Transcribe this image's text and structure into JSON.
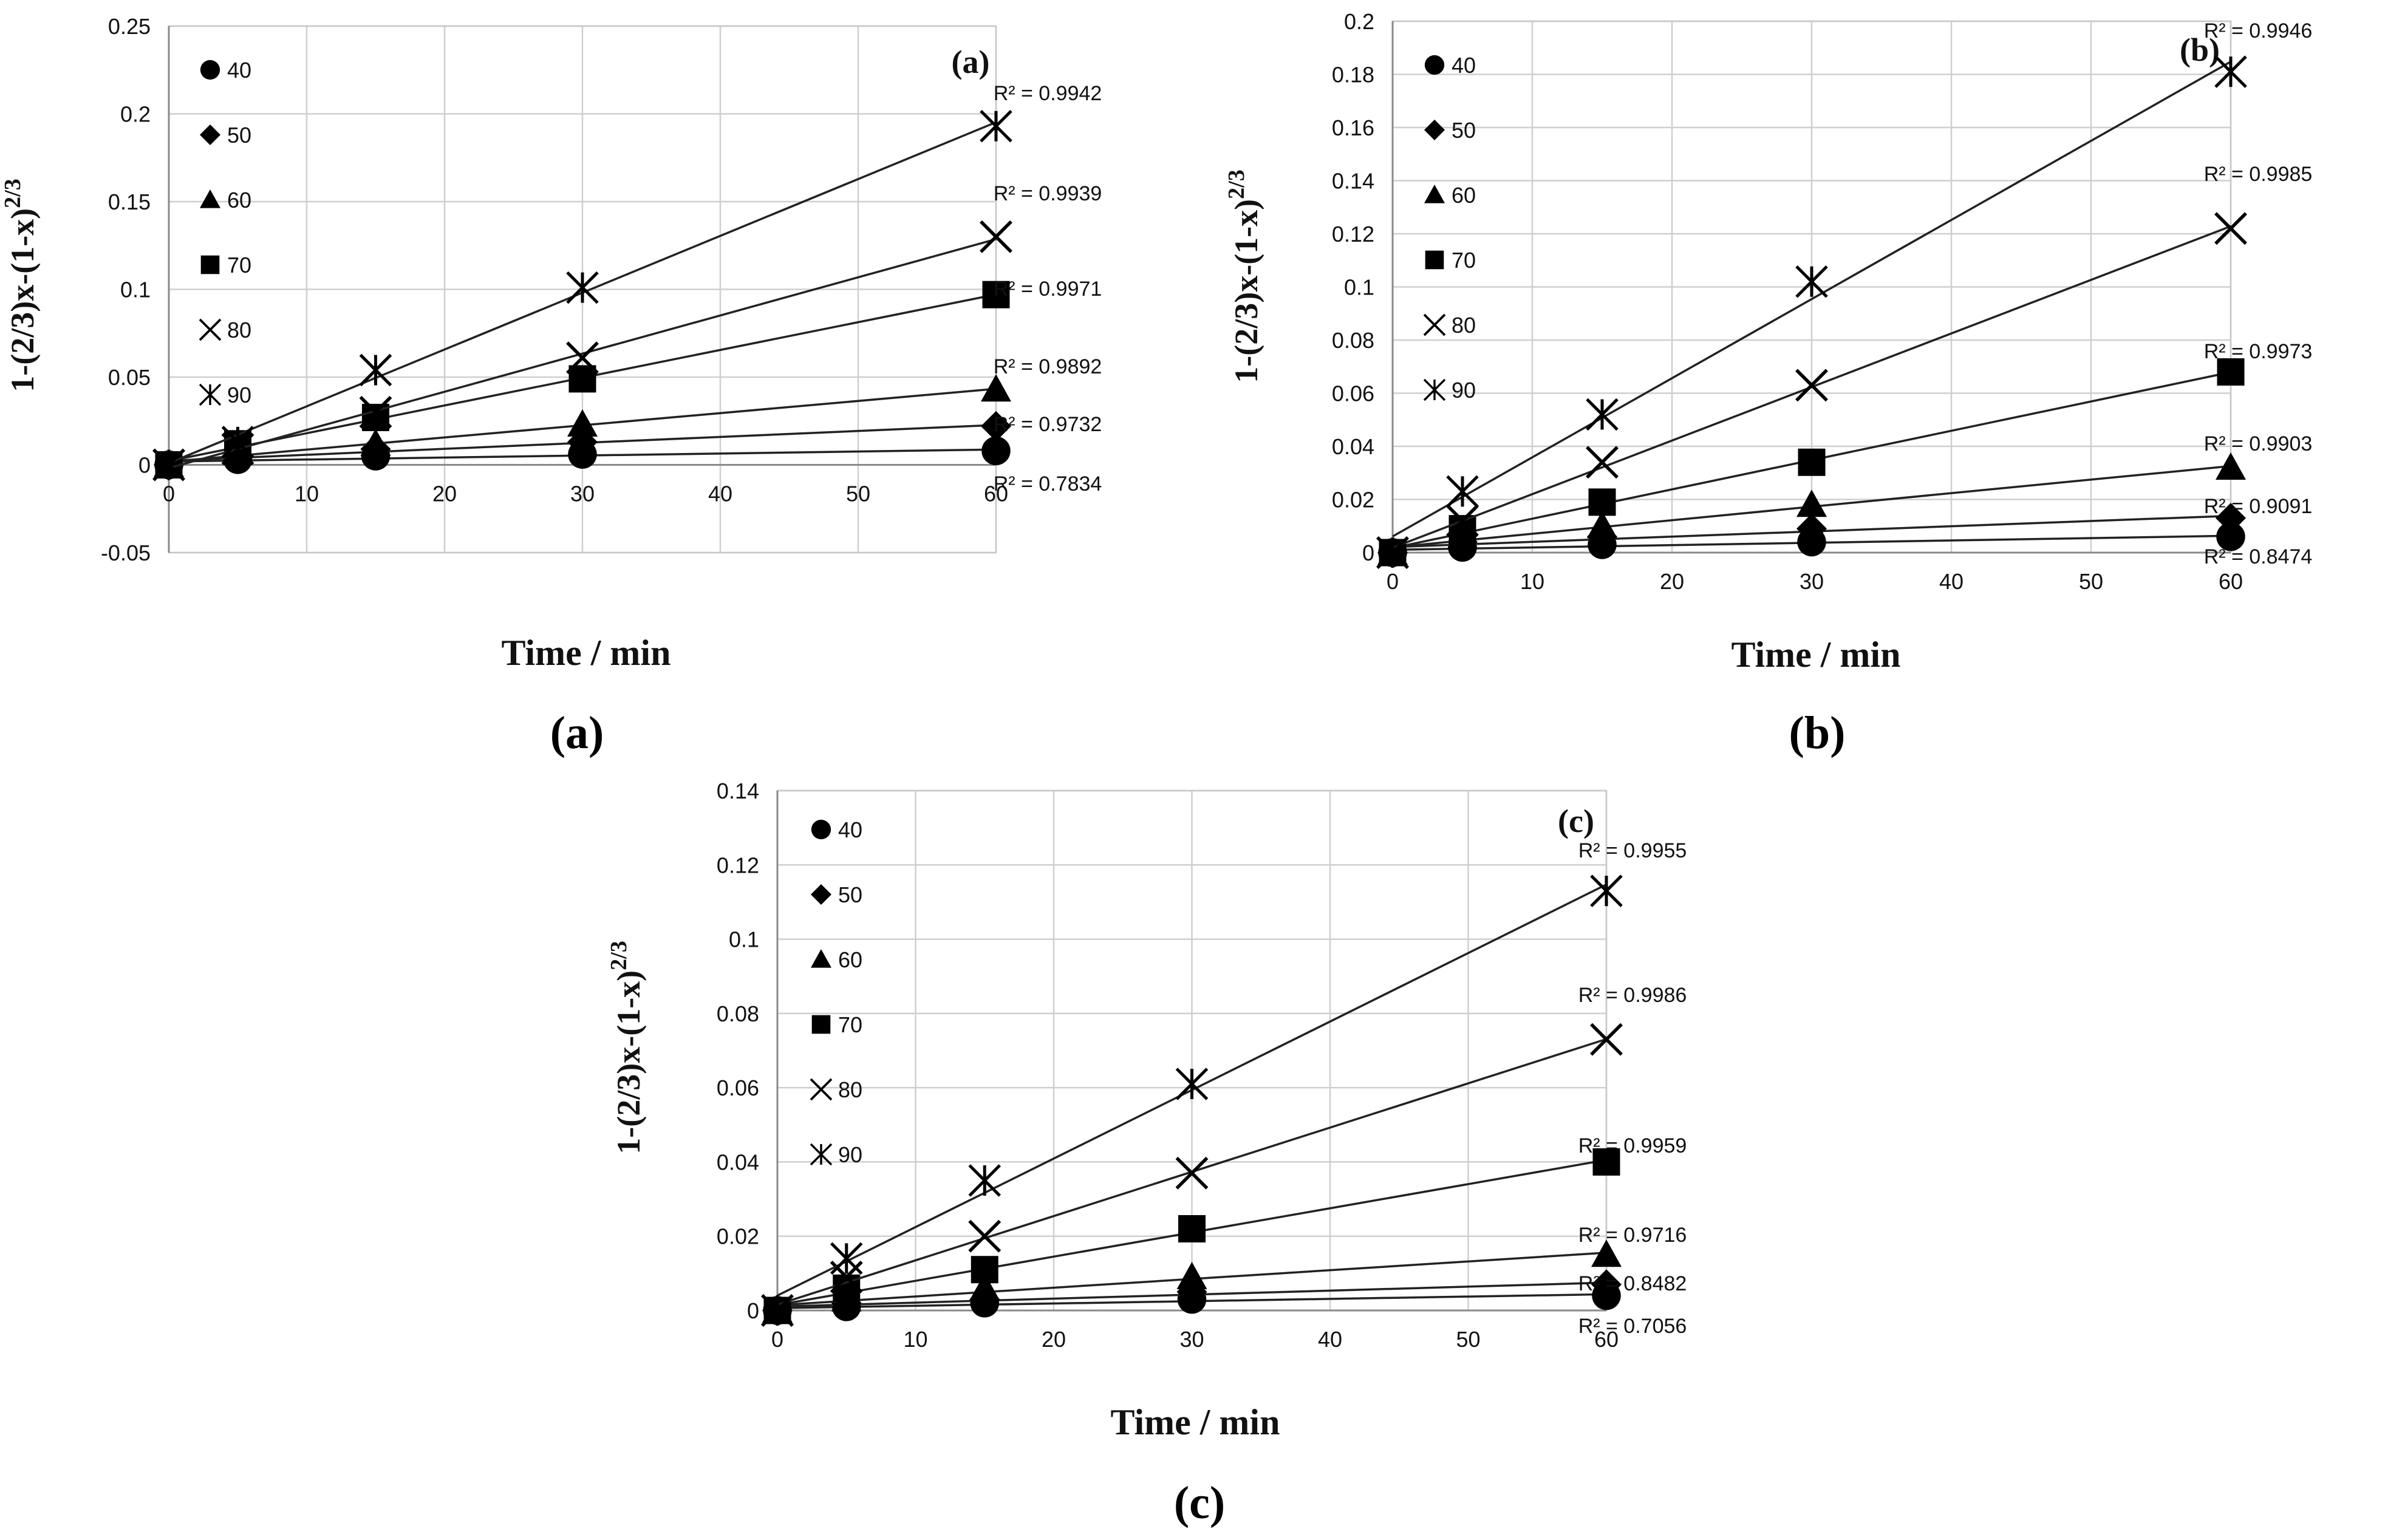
{
  "figure_labels": [
    "(a)",
    "(b)",
    "(c)"
  ],
  "chart_data": [
    {
      "type": "scatter",
      "panel": "(a)",
      "tag": "(a)",
      "xlabel": "Time / min",
      "ylabel": "1-(2/3)x-(1-x)",
      "ylabel_sup": "2/3",
      "xlim": [
        0,
        60
      ],
      "ylim": [
        -0.05,
        0.25
      ],
      "xticks": [
        "0",
        "10",
        "20",
        "30",
        "40",
        "50",
        "60"
      ],
      "yticks": [
        "-0.05",
        "0",
        "0.05",
        "0.1",
        "0.15",
        "0.2",
        "0.25"
      ],
      "grid": true,
      "legend": "top-left",
      "x": [
        0,
        5,
        15,
        30,
        60
      ],
      "series": [
        {
          "name": "40",
          "marker": "circle",
          "values": [
            0,
            0.003,
            0.005,
            0.006,
            0.008
          ],
          "r2": "R² = 0.7834"
        },
        {
          "name": "50",
          "marker": "diamond",
          "values": [
            0,
            0.005,
            0.009,
            0.013,
            0.022
          ],
          "r2": "R² = 0.9732"
        },
        {
          "name": "60",
          "marker": "triangle",
          "values": [
            0,
            0.007,
            0.012,
            0.023,
            0.043
          ],
          "r2": "R² = 0.9892"
        },
        {
          "name": "70",
          "marker": "square",
          "values": [
            0,
            0.012,
            0.027,
            0.049,
            0.097
          ],
          "r2": "R² = 0.9971"
        },
        {
          "name": "80",
          "marker": "x",
          "values": [
            0,
            0.009,
            0.03,
            0.061,
            0.13
          ],
          "r2": "R² = 0.9939"
        },
        {
          "name": "90",
          "marker": "asterisk",
          "values": [
            0,
            0.013,
            0.054,
            0.101,
            0.193
          ],
          "r2": "R² = 0.9942"
        }
      ]
    },
    {
      "type": "scatter",
      "panel": "(b)",
      "tag": "(b)",
      "xlabel": "Time / min",
      "ylabel": "1-(2/3)x-(1-x)",
      "ylabel_sup": "2/3",
      "xlim": [
        0,
        60
      ],
      "ylim": [
        0,
        0.2
      ],
      "xticks": [
        "0",
        "10",
        "20",
        "30",
        "40",
        "50",
        "60"
      ],
      "yticks": [
        "0",
        "0.02",
        "0.04",
        "0.06",
        "0.08",
        "0.1",
        "0.12",
        "0.14",
        "0.16",
        "0.18",
        "0.2"
      ],
      "grid": true,
      "legend": "top-left",
      "x": [
        0,
        5,
        15,
        30,
        60
      ],
      "series": [
        {
          "name": "40",
          "marker": "circle",
          "values": [
            0,
            0.002,
            0.003,
            0.004,
            0.006
          ],
          "r2": "R² = 0.8474"
        },
        {
          "name": "50",
          "marker": "diamond",
          "values": [
            0,
            0.004,
            0.006,
            0.009,
            0.013
          ],
          "r2": "R² = 0.9091"
        },
        {
          "name": "60",
          "marker": "triangle",
          "values": [
            0,
            0.006,
            0.01,
            0.018,
            0.032
          ],
          "r2": "R² = 0.9903"
        },
        {
          "name": "70",
          "marker": "square",
          "values": [
            0,
            0.009,
            0.019,
            0.034,
            0.068
          ],
          "r2": "R² = 0.9973"
        },
        {
          "name": "80",
          "marker": "x",
          "values": [
            0,
            0.012,
            0.034,
            0.063,
            0.122
          ],
          "r2": "R² = 0.9985"
        },
        {
          "name": "90",
          "marker": "asterisk",
          "values": [
            0,
            0.023,
            0.052,
            0.102,
            0.181
          ],
          "r2": "R² = 0.9946"
        }
      ]
    },
    {
      "type": "scatter",
      "panel": "(c)",
      "tag": "(c)",
      "xlabel": "Time / min",
      "ylabel": "1-(2/3)x-(1-x)",
      "ylabel_sup": "2/3",
      "xlim": [
        0,
        60
      ],
      "ylim": [
        0,
        0.14
      ],
      "xticks": [
        "0",
        "10",
        "20",
        "30",
        "40",
        "50",
        "60"
      ],
      "yticks": [
        "0",
        "0.02",
        "0.04",
        "0.06",
        "0.08",
        "0.1",
        "0.12",
        "0.14"
      ],
      "grid": true,
      "legend": "top-left",
      "x": [
        0,
        5,
        15,
        30,
        60
      ],
      "series": [
        {
          "name": "40",
          "marker": "circle",
          "values": [
            0,
            0.001,
            0.002,
            0.003,
            0.004
          ],
          "r2": "R² = 0.7056"
        },
        {
          "name": "50",
          "marker": "diamond",
          "values": [
            0,
            0.002,
            0.003,
            0.005,
            0.007
          ],
          "r2": "R² = 0.8482"
        },
        {
          "name": "60",
          "marker": "triangle",
          "values": [
            0,
            0.003,
            0.006,
            0.009,
            0.015
          ],
          "r2": "R² = 0.9716"
        },
        {
          "name": "70",
          "marker": "square",
          "values": [
            0,
            0.006,
            0.011,
            0.022,
            0.04
          ],
          "r2": "R² = 0.9959"
        },
        {
          "name": "80",
          "marker": "x",
          "values": [
            0,
            0.009,
            0.02,
            0.037,
            0.073
          ],
          "r2": "R² = 0.9986"
        },
        {
          "name": "90",
          "marker": "asterisk",
          "values": [
            0,
            0.014,
            0.035,
            0.061,
            0.113
          ],
          "r2": "R² = 0.9955"
        }
      ]
    }
  ]
}
